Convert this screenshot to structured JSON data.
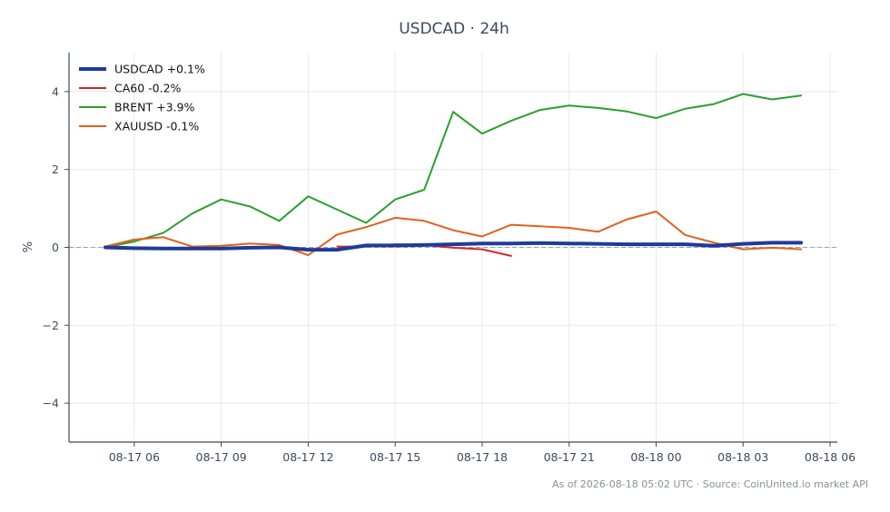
{
  "chart_data": {
    "type": "line",
    "title": "USDCAD · 24h",
    "xlabel": "",
    "ylabel": "%",
    "ylim": [
      -5,
      5
    ],
    "yticks": [
      -4,
      -2,
      0,
      2,
      4
    ],
    "ytick_labels": [
      "−4",
      "−2",
      "0",
      "2",
      "4"
    ],
    "xlim": [
      "2026-08-17 03:45",
      "2026-08-18 06:15"
    ],
    "xticks": [
      "2026-08-17 06:00",
      "2026-08-17 09:00",
      "2026-08-17 12:00",
      "2026-08-17 15:00",
      "2026-08-17 18:00",
      "2026-08-17 21:00",
      "2026-08-18 00:00",
      "2026-08-18 03:00",
      "2026-08-18 06:00"
    ],
    "xtick_labels": [
      "08-17 06",
      "08-17 09",
      "08-17 12",
      "08-17 15",
      "08-17 18",
      "08-17 21",
      "08-18 00",
      "08-18 03",
      "08-18 06"
    ],
    "grid": true,
    "legend_position": "top-left",
    "reference_line": 0,
    "series": [
      {
        "name": "USDCAD +0.1%",
        "color": "#1f3b99",
        "width": 4,
        "x": [
          "2026-08-17 05:00",
          "2026-08-17 06:00",
          "2026-08-17 07:00",
          "2026-08-17 08:00",
          "2026-08-17 09:00",
          "2026-08-17 10:00",
          "2026-08-17 11:00",
          "2026-08-17 12:00",
          "2026-08-17 13:00",
          "2026-08-17 14:00",
          "2026-08-17 15:00",
          "2026-08-17 16:00",
          "2026-08-17 17:00",
          "2026-08-17 18:00",
          "2026-08-17 19:00",
          "2026-08-17 20:00",
          "2026-08-17 21:00",
          "2026-08-17 22:00",
          "2026-08-17 23:00",
          "2026-08-18 00:00",
          "2026-08-18 01:00",
          "2026-08-18 02:00",
          "2026-08-18 03:00",
          "2026-08-18 04:00",
          "2026-08-18 05:00"
        ],
        "values": [
          0.0,
          -0.02,
          -0.03,
          -0.03,
          -0.03,
          -0.01,
          0.0,
          -0.06,
          -0.06,
          0.05,
          0.05,
          0.06,
          0.08,
          0.1,
          0.1,
          0.11,
          0.1,
          0.09,
          0.08,
          0.08,
          0.08,
          0.04,
          0.09,
          0.12,
          0.12
        ]
      },
      {
        "name": "CA60 -0.2%",
        "color": "#d62728",
        "width": 2,
        "x": [
          "2026-08-17 13:00",
          "2026-08-17 14:00",
          "2026-08-17 15:00",
          "2026-08-17 16:00",
          "2026-08-17 17:00",
          "2026-08-17 18:00",
          "2026-08-17 19:00"
        ],
        "values": [
          0.02,
          0.02,
          0.08,
          0.06,
          -0.01,
          -0.05,
          -0.22
        ]
      },
      {
        "name": "BRENT +3.9%",
        "color": "#2ca02c",
        "width": 2,
        "x": [
          "2026-08-17 05:00",
          "2026-08-17 06:00",
          "2026-08-17 07:00",
          "2026-08-17 08:00",
          "2026-08-17 09:00",
          "2026-08-17 10:00",
          "2026-08-17 11:00",
          "2026-08-17 12:00",
          "2026-08-17 13:00",
          "2026-08-17 14:00",
          "2026-08-17 15:00",
          "2026-08-17 16:00",
          "2026-08-17 17:00",
          "2026-08-17 18:00",
          "2026-08-17 19:00",
          "2026-08-17 20:00",
          "2026-08-17 21:00",
          "2026-08-17 22:00",
          "2026-08-17 23:00",
          "2026-08-18 00:00",
          "2026-08-18 01:00",
          "2026-08-18 02:00",
          "2026-08-18 03:00",
          "2026-08-18 04:00",
          "2026-08-18 05:00"
        ],
        "values": [
          0.0,
          0.15,
          0.37,
          0.87,
          1.23,
          1.05,
          0.68,
          1.31,
          0.97,
          0.63,
          1.23,
          1.48,
          3.48,
          2.92,
          3.25,
          3.53,
          3.64,
          3.58,
          3.49,
          3.32,
          3.56,
          3.68,
          3.94,
          3.8,
          3.9
        ]
      },
      {
        "name": "XAUUSD -0.1%",
        "color": "#e0621c",
        "width": 2,
        "x": [
          "2026-08-17 05:00",
          "2026-08-17 06:00",
          "2026-08-17 07:00",
          "2026-08-17 08:00",
          "2026-08-17 09:00",
          "2026-08-17 10:00",
          "2026-08-17 11:00",
          "2026-08-17 12:00",
          "2026-08-17 13:00",
          "2026-08-17 14:00",
          "2026-08-17 15:00",
          "2026-08-17 16:00",
          "2026-08-17 17:00",
          "2026-08-17 18:00",
          "2026-08-17 19:00",
          "2026-08-17 20:00",
          "2026-08-17 21:00",
          "2026-08-17 22:00",
          "2026-08-17 23:00",
          "2026-08-18 00:00",
          "2026-08-18 01:00",
          "2026-08-18 02:00",
          "2026-08-18 03:00",
          "2026-08-18 04:00",
          "2026-08-18 05:00"
        ],
        "values": [
          0.02,
          0.2,
          0.26,
          0.02,
          0.04,
          0.1,
          0.06,
          -0.2,
          0.33,
          0.52,
          0.76,
          0.68,
          0.44,
          0.28,
          0.58,
          0.54,
          0.5,
          0.4,
          0.72,
          0.92,
          0.32,
          0.12,
          -0.05,
          -0.01,
          -0.05
        ]
      }
    ]
  },
  "footer": "As of 2026-08-18 05:02 UTC · Source: CoinUnited.io market API"
}
